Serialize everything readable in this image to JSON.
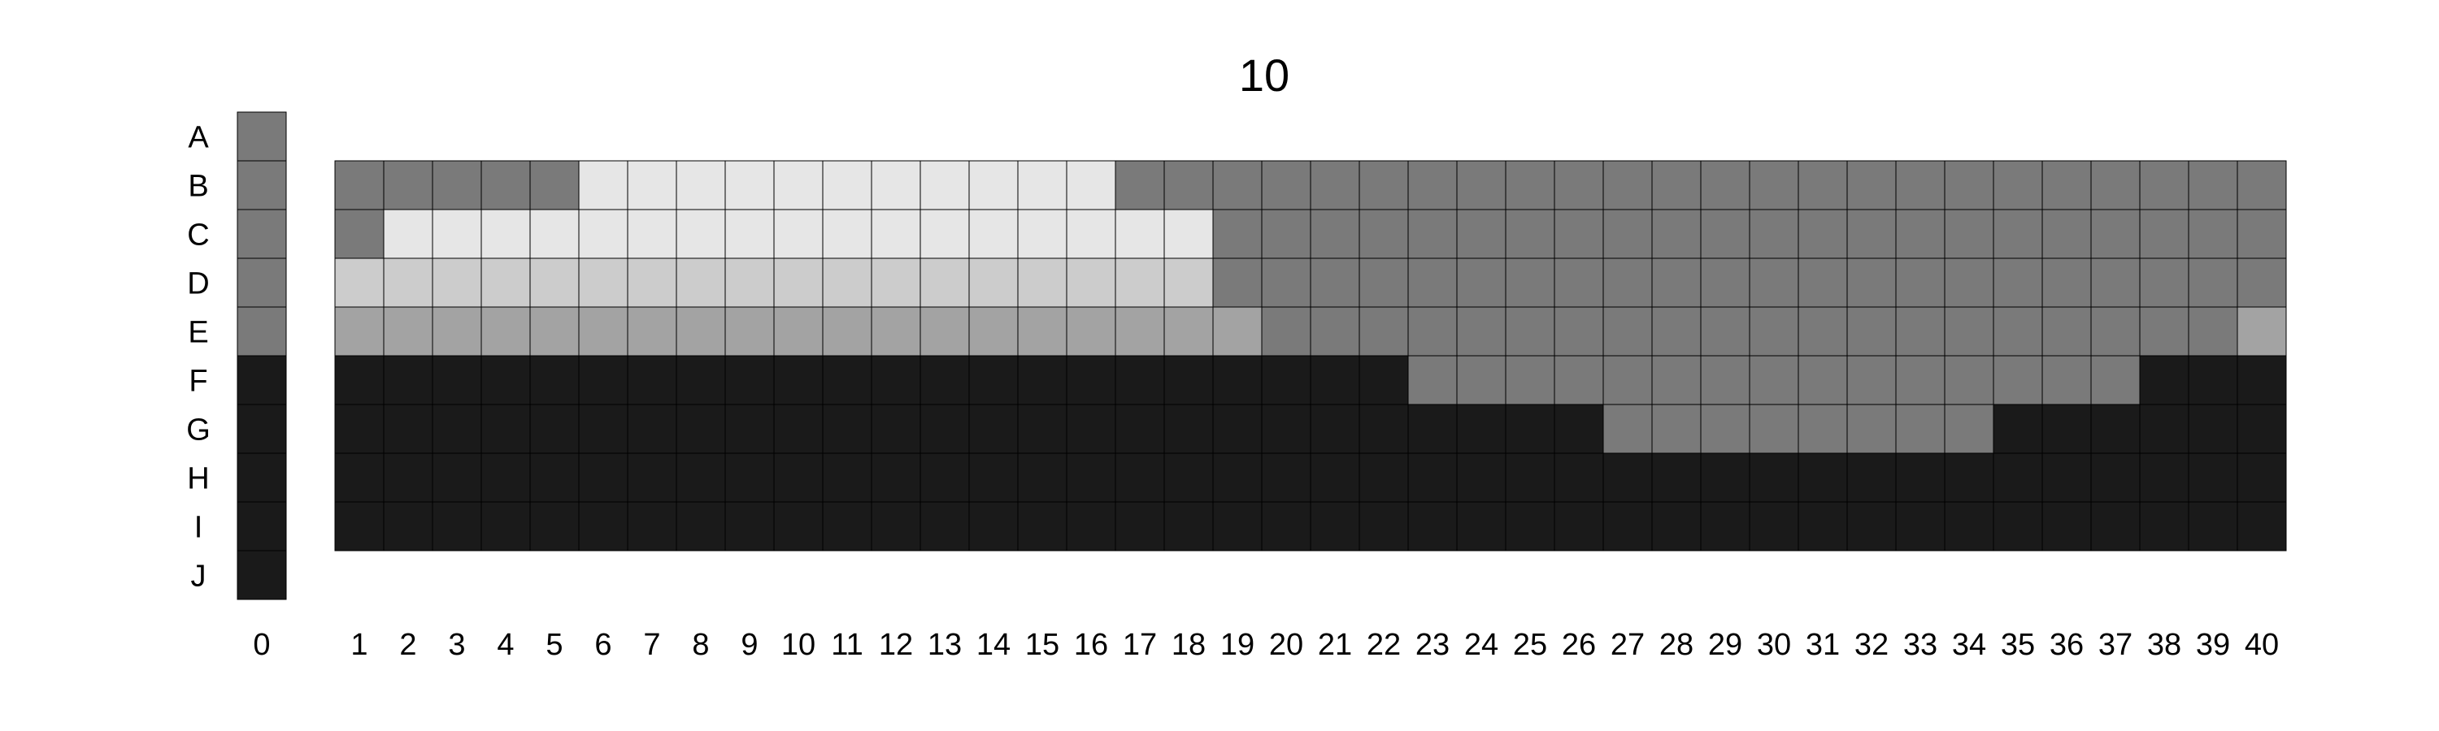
{
  "chart_data": {
    "type": "heatmap",
    "title": "10",
    "row_labels": [
      "A",
      "B",
      "C",
      "D",
      "E",
      "F",
      "G",
      "H",
      "I",
      "J"
    ],
    "reference_column": {
      "label": "0",
      "values": [
        1,
        1,
        1,
        1,
        1,
        0,
        0,
        0,
        0,
        0
      ]
    },
    "grid_columns": [
      "1",
      "2",
      "3",
      "4",
      "5",
      "6",
      "7",
      "8",
      "9",
      "10",
      "11",
      "12",
      "13",
      "14",
      "15",
      "16",
      "17",
      "18",
      "19",
      "20",
      "21",
      "22",
      "23",
      "24",
      "25",
      "26",
      "27",
      "28",
      "29",
      "30",
      "31",
      "32",
      "33",
      "34",
      "35",
      "36",
      "37",
      "38",
      "39",
      "40"
    ],
    "grid_row_labels": [
      "B",
      "C",
      "D",
      "E",
      "F",
      "G",
      "H",
      "I"
    ],
    "grid_values": [
      [
        1,
        1,
        1,
        1,
        1,
        4,
        4,
        4,
        4,
        4,
        4,
        4,
        4,
        4,
        4,
        4,
        1,
        1,
        1,
        1,
        1,
        1,
        1,
        1,
        1,
        1,
        1,
        1,
        1,
        1,
        1,
        1,
        1,
        1,
        1,
        1,
        1,
        1,
        1,
        1
      ],
      [
        1,
        4,
        4,
        4,
        4,
        4,
        4,
        4,
        4,
        4,
        4,
        4,
        4,
        4,
        4,
        4,
        4,
        4,
        1,
        1,
        1,
        1,
        1,
        1,
        1,
        1,
        1,
        1,
        1,
        1,
        1,
        1,
        1,
        1,
        1,
        1,
        1,
        1,
        1,
        1
      ],
      [
        3,
        3,
        3,
        3,
        3,
        3,
        3,
        3,
        3,
        3,
        3,
        3,
        3,
        3,
        3,
        3,
        3,
        3,
        1,
        1,
        1,
        1,
        1,
        1,
        1,
        1,
        1,
        1,
        1,
        1,
        1,
        1,
        1,
        1,
        1,
        1,
        1,
        1,
        1,
        1
      ],
      [
        2,
        2,
        2,
        2,
        2,
        2,
        2,
        2,
        2,
        2,
        2,
        2,
        2,
        2,
        2,
        2,
        2,
        2,
        2,
        1,
        1,
        1,
        1,
        1,
        1,
        1,
        1,
        1,
        1,
        1,
        1,
        1,
        1,
        1,
        1,
        1,
        1,
        1,
        1,
        2
      ],
      [
        0,
        0,
        0,
        0,
        0,
        0,
        0,
        0,
        0,
        0,
        0,
        0,
        0,
        0,
        0,
        0,
        0,
        0,
        0,
        0,
        0,
        0,
        1,
        1,
        1,
        1,
        1,
        1,
        1,
        1,
        1,
        1,
        1,
        1,
        1,
        1,
        1,
        0,
        0,
        0
      ],
      [
        0,
        0,
        0,
        0,
        0,
        0,
        0,
        0,
        0,
        0,
        0,
        0,
        0,
        0,
        0,
        0,
        0,
        0,
        0,
        0,
        0,
        0,
        0,
        0,
        0,
        0,
        1,
        1,
        1,
        1,
        1,
        1,
        1,
        1,
        0,
        0,
        0,
        0,
        0,
        0
      ],
      [
        0,
        0,
        0,
        0,
        0,
        0,
        0,
        0,
        0,
        0,
        0,
        0,
        0,
        0,
        0,
        0,
        0,
        0,
        0,
        0,
        0,
        0,
        0,
        0,
        0,
        0,
        0,
        0,
        0,
        0,
        0,
        0,
        0,
        0,
        0,
        0,
        0,
        0,
        0,
        0
      ],
      [
        0,
        0,
        0,
        0,
        0,
        0,
        0,
        0,
        0,
        0,
        0,
        0,
        0,
        0,
        0,
        0,
        0,
        0,
        0,
        0,
        0,
        0,
        0,
        0,
        0,
        0,
        0,
        0,
        0,
        0,
        0,
        0,
        0,
        0,
        0,
        0,
        0,
        0,
        0,
        0
      ]
    ],
    "color_scale": [
      "#1a1a1a",
      "#7a7a7a",
      "#a3a3a3",
      "#cccccc",
      "#e6e6e6"
    ],
    "grid_lines": true,
    "legend": "none"
  }
}
